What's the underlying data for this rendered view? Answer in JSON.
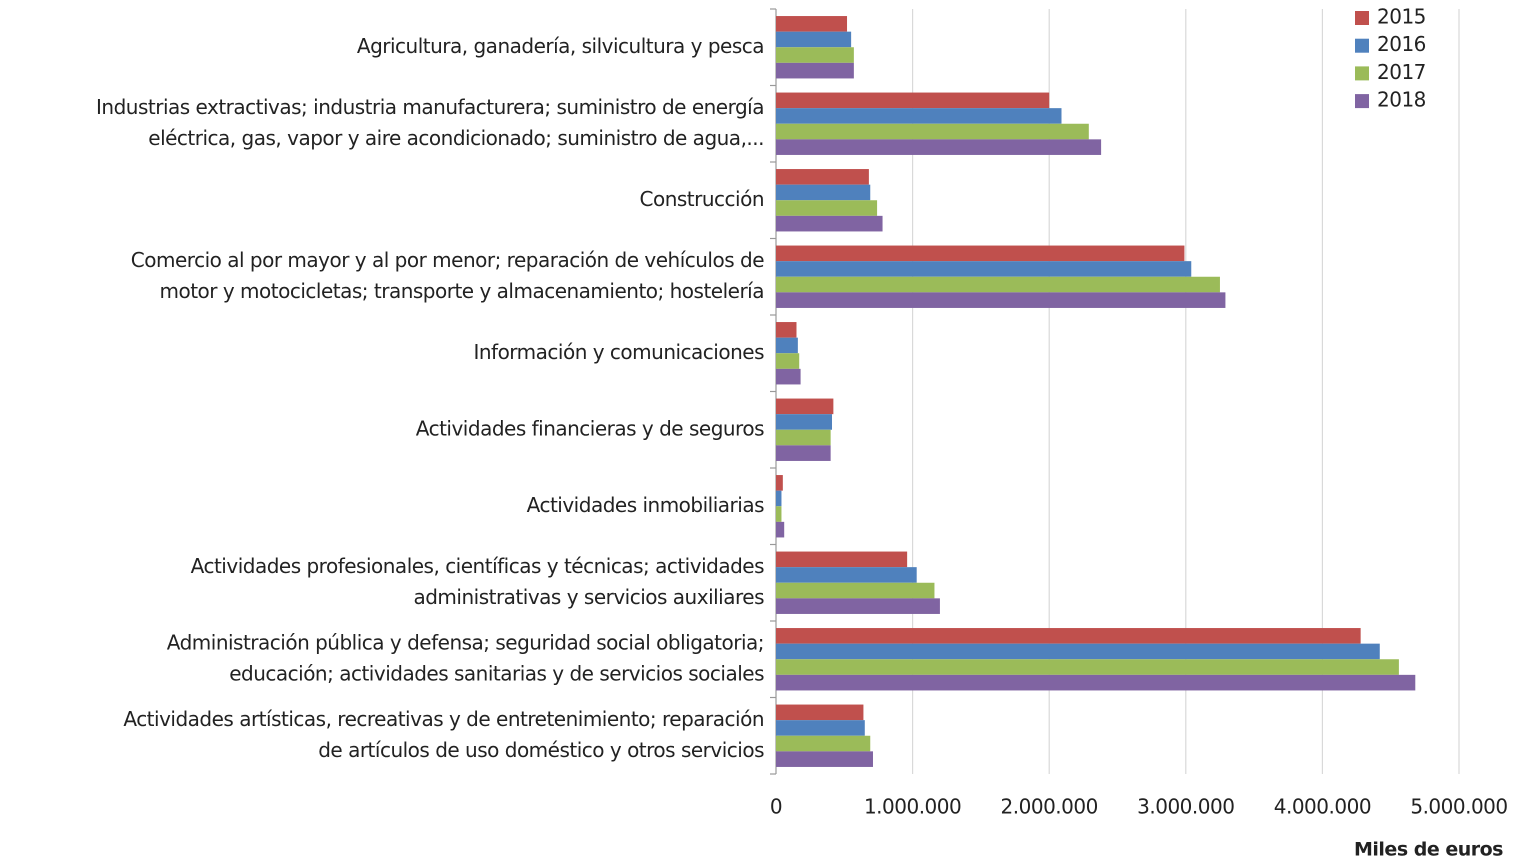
{
  "chart_data": {
    "type": "bar",
    "orientation": "horizontal",
    "x_label": "Miles de euros",
    "categories": [
      [
        "Agricultura, ganadería, silvicultura y pesca"
      ],
      [
        "Industrias extractivas; industria manufacturera; suministro de energía",
        "eléctrica, gas, vapor y aire acondicionado; suministro de agua,..."
      ],
      [
        "Construcción"
      ],
      [
        "Comercio al por mayor y al por menor; reparación de vehículos de",
        "motor y motocicletas; transporte y almacenamiento; hostelería"
      ],
      [
        "Información y comunicaciones"
      ],
      [
        "Actividades financieras y de seguros"
      ],
      [
        "Actividades inmobiliarias"
      ],
      [
        "Actividades profesionales, científicas y técnicas; actividades",
        "administrativas y servicios auxiliares"
      ],
      [
        "Administración pública y defensa; seguridad social obligatoria;",
        "educación; actividades sanitarias y de servicios sociales"
      ],
      [
        "Actividades artísticas, recreativas y de entretenimiento; reparación",
        "de artículos de uso doméstico y otros servicios"
      ]
    ],
    "series": [
      {
        "name": "2015",
        "color": "#c0504d",
        "values": [
          520000,
          2000000,
          680000,
          2990000,
          150000,
          420000,
          50000,
          960000,
          4280000,
          640000
        ]
      },
      {
        "name": "2016",
        "color": "#4f81bd",
        "values": [
          550000,
          2090000,
          690000,
          3040000,
          160000,
          410000,
          40000,
          1030000,
          4420000,
          650000
        ]
      },
      {
        "name": "2017",
        "color": "#9bbb59",
        "values": [
          570000,
          2290000,
          740000,
          3250000,
          170000,
          400000,
          40000,
          1160000,
          4560000,
          690000
        ]
      },
      {
        "name": "2018",
        "color": "#8064a2",
        "values": [
          570000,
          2380000,
          780000,
          3290000,
          180000,
          400000,
          60000,
          1200000,
          4680000,
          710000
        ]
      }
    ],
    "xlim": [
      0,
      5000000
    ],
    "xticks": [
      0,
      {
        "value": 1000000,
        "label": "1.000.000"
      },
      {
        "value": 2000000,
        "label": "2.000.000"
      },
      {
        "value": 3000000,
        "label": "3.000.000"
      },
      {
        "value": 4000000,
        "label": "4.000.000"
      },
      {
        "value": 5000000,
        "label": "5.000.000"
      }
    ],
    "grid": true,
    "legend": "top-right"
  }
}
